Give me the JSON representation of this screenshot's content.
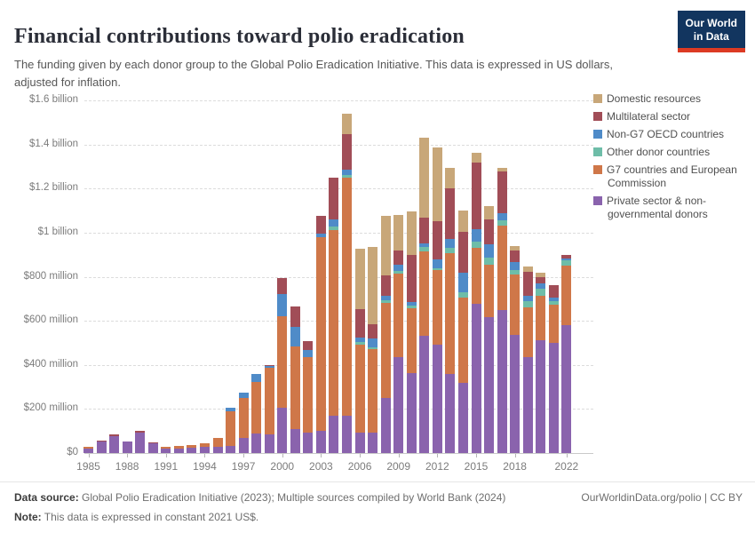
{
  "header": {
    "title": "Financial contributions toward polio eradication",
    "subtitle": "The funding given by each donor group to the Global Polio Eradication Initiative. This data is expressed in US dollars, adjusted for inflation.",
    "logo": {
      "line1": "Our World",
      "line2": "in Data",
      "bg_color": "#12355f",
      "stripe_color": "#dc3a23"
    }
  },
  "chart_data": {
    "type": "bar",
    "stacked": true,
    "unit": "US$, constant 2021",
    "grid": "horizontal-dashed",
    "legend_position": "top-right",
    "ylim": [
      0,
      1600
    ],
    "y_ticks": [
      {
        "value": 0,
        "label": "$0"
      },
      {
        "value": 200,
        "label": "$200 million"
      },
      {
        "value": 400,
        "label": "$400 million"
      },
      {
        "value": 600,
        "label": "$600 million"
      },
      {
        "value": 800,
        "label": "$800 million"
      },
      {
        "value": 1000,
        "label": "$1 billion"
      },
      {
        "value": 1200,
        "label": "$1.2 billion"
      },
      {
        "value": 1400,
        "label": "$1.4 billion"
      },
      {
        "value": 1600,
        "label": "$1.6 billion"
      }
    ],
    "x_start_year": 1985,
    "x": [
      1985,
      1986,
      1987,
      1988,
      1989,
      1990,
      1991,
      1992,
      1993,
      1994,
      1995,
      1996,
      1997,
      1998,
      1999,
      2000,
      2001,
      2002,
      2003,
      2004,
      2005,
      2006,
      2007,
      2008,
      2009,
      2010,
      2011,
      2012,
      2013,
      2014,
      2015,
      2016,
      2017,
      2018,
      2019,
      2020,
      2021,
      2022
    ],
    "x_tick_labels": [
      1985,
      1988,
      1991,
      1994,
      1997,
      2000,
      2003,
      2006,
      2009,
      2012,
      2015,
      2018,
      2022
    ],
    "series_note": "values in US$ millions; legend order top-to-bottom equals stack order top-to-bottom",
    "series": [
      {
        "key": "domestic",
        "name": "Domestic resources",
        "color": "#c8a779",
        "values": [
          0,
          0,
          0,
          0,
          0,
          0,
          0,
          0,
          0,
          0,
          0,
          0,
          0,
          0,
          0,
          0,
          0,
          0,
          0,
          0,
          95,
          275,
          348,
          271,
          161,
          195,
          365,
          335,
          95,
          95,
          45,
          60,
          15,
          20,
          24,
          21,
          0,
          0
        ]
      },
      {
        "key": "multilateral",
        "name": "Multilateral sector",
        "color": "#a14d57",
        "values": [
          0,
          4,
          7,
          2,
          8,
          2,
          0,
          0,
          0,
          0,
          0,
          0,
          0,
          0,
          5,
          72,
          90,
          40,
          80,
          188,
          160,
          128,
          65,
          94,
          67,
          215,
          114,
          170,
          230,
          185,
          300,
          114,
          188,
          54,
          110,
          27,
          55,
          16
        ]
      },
      {
        "key": "non_g7_oecd",
        "name": "Non-G7 OECD countries",
        "color": "#4f8bc8",
        "values": [
          0,
          0,
          0,
          0,
          0,
          0,
          0,
          0,
          0,
          0,
          0,
          16,
          25,
          38,
          10,
          100,
          90,
          30,
          17,
          34,
          25,
          20,
          40,
          20,
          27,
          17,
          20,
          40,
          40,
          90,
          57,
          60,
          32,
          34,
          24,
          23,
          16,
          8
        ]
      },
      {
        "key": "other_donor",
        "name": "Other donor countries",
        "color": "#6ebda8",
        "values": [
          0,
          0,
          0,
          0,
          0,
          0,
          0,
          0,
          0,
          0,
          0,
          0,
          0,
          0,
          0,
          0,
          0,
          0,
          0,
          17,
          10,
          13,
          10,
          13,
          13,
          10,
          20,
          10,
          25,
          25,
          30,
          34,
          27,
          24,
          30,
          34,
          17,
          24
        ]
      },
      {
        "key": "g7_ec",
        "name": "G7 countries and European Commission",
        "color": "#cf7749",
        "values": [
          8,
          0,
          0,
          0,
          0,
          0,
          8,
          11,
          13,
          16,
          40,
          154,
          180,
          235,
          300,
          415,
          376,
          342,
          880,
          842,
          1080,
          396,
          376,
          430,
          376,
          295,
          383,
          340,
          545,
          385,
          255,
          235,
          380,
          271,
          222,
          199,
          172,
          270
        ]
      },
      {
        "key": "private_ngo",
        "name": "Private sector & non-governmental donors",
        "color": "#8a63ad",
        "values": [
          22,
          53,
          76,
          52,
          92,
          45,
          22,
          21,
          25,
          27,
          30,
          34,
          70,
          87,
          85,
          205,
          107,
          94,
          100,
          168,
          170,
          94,
          94,
          250,
          437,
          363,
          530,
          490,
          360,
          320,
          675,
          618,
          650,
          537,
          437,
          513,
          500,
          580
        ]
      }
    ]
  },
  "footer": {
    "datasource_label": "Data source:",
    "datasource_text": " Global Polio Eradication Initiative (2023); Multiple sources compiled by World Bank (2024)",
    "link": "OurWorldinData.org/polio | CC BY",
    "note_label": "Note:",
    "note_text": " This data is expressed in constant 2021 US$."
  }
}
